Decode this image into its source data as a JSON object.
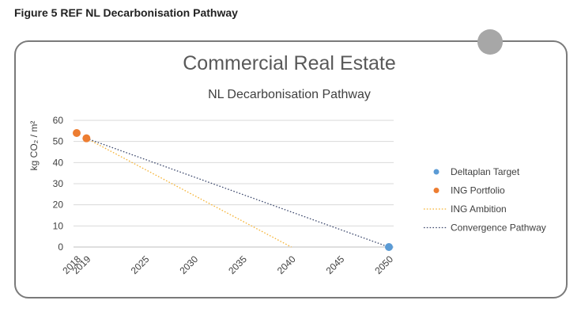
{
  "figure_caption": "Figure 5  REF NL Decarbonisation Pathway",
  "chart_data": {
    "type": "line",
    "title": "Commercial Real Estate",
    "subtitle": "NL Decarbonisation Pathway",
    "ylabel": "kg CO₂ / m²",
    "ylim": [
      0,
      60
    ],
    "yticks": [
      0,
      10,
      20,
      30,
      40,
      50,
      60
    ],
    "xlim": [
      2018,
      2050
    ],
    "xticks": [
      2018,
      2019,
      2025,
      2030,
      2035,
      2040,
      2045,
      2050
    ],
    "grid": true,
    "legend_position": "right",
    "series": [
      {
        "name": "Deltaplan Target",
        "kind": "scatter",
        "color": "#5b9bd5",
        "points": [
          [
            2050,
            0
          ]
        ]
      },
      {
        "name": "ING Portfolio",
        "kind": "scatter",
        "color": "#ed7d31",
        "points": [
          [
            2018,
            54
          ],
          [
            2019,
            51.5
          ]
        ]
      },
      {
        "name": "ING Ambition",
        "kind": "line",
        "style": "dotted",
        "color": "#f5b335",
        "points": [
          [
            2019,
            51.5
          ],
          [
            2040,
            0
          ]
        ]
      },
      {
        "name": "Convergence Pathway",
        "kind": "line",
        "style": "dotted",
        "color": "#3e4a6e",
        "points": [
          [
            2019,
            51.5
          ],
          [
            2050,
            0
          ]
        ]
      }
    ]
  }
}
